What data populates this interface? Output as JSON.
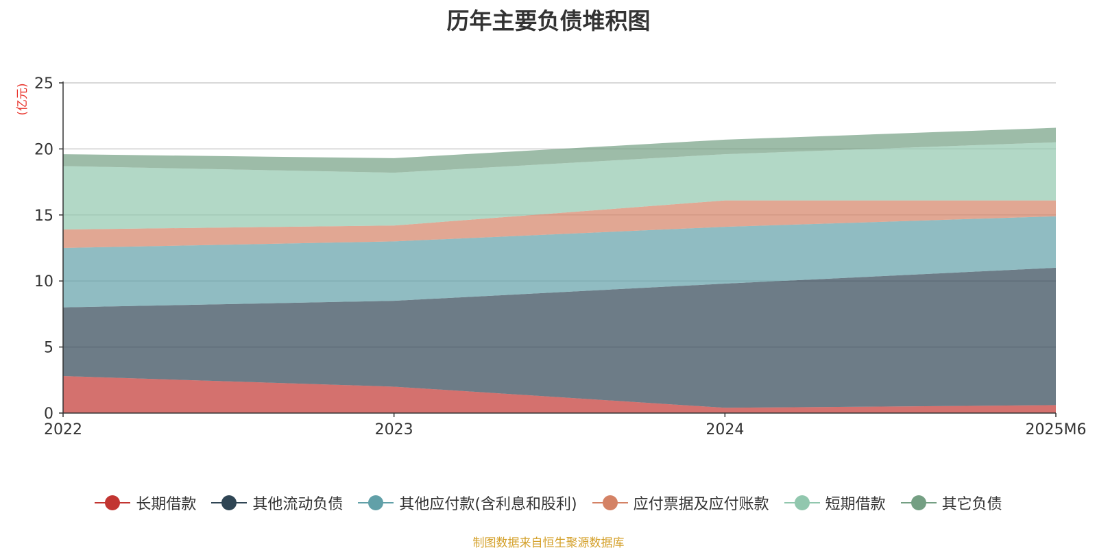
{
  "chart_data": {
    "type": "area",
    "stacked": true,
    "title": "历年主要负债堆积图",
    "unit_label": "(亿元)",
    "x": [
      "2022",
      "2023",
      "2024",
      "2025M6"
    ],
    "ylim": [
      0,
      25
    ],
    "yticks": [
      0,
      5,
      10,
      15,
      20,
      25
    ],
    "grid": true,
    "legend_position": "bottom",
    "series": [
      {
        "name": "长期借款",
        "color": "#c23531",
        "values": [
          2.8,
          2.0,
          0.4,
          0.6
        ]
      },
      {
        "name": "其他流动负债",
        "color": "#2f4554",
        "values": [
          5.2,
          6.5,
          9.4,
          10.4
        ]
      },
      {
        "name": "其他应付款(含利息和股利)",
        "color": "#61a0a8",
        "values": [
          4.5,
          4.5,
          4.3,
          3.9
        ]
      },
      {
        "name": "应付票据及应付账款",
        "color": "#d48265",
        "values": [
          1.4,
          1.2,
          2.0,
          1.2
        ]
      },
      {
        "name": "短期借款",
        "color": "#91c7ae",
        "values": [
          4.8,
          4.0,
          3.5,
          4.4
        ]
      },
      {
        "name": "其它负债",
        "color": "#749f83",
        "values": [
          0.9,
          1.1,
          1.1,
          1.1
        ]
      }
    ]
  },
  "source_note": "制图数据来自恒生聚源数据库"
}
